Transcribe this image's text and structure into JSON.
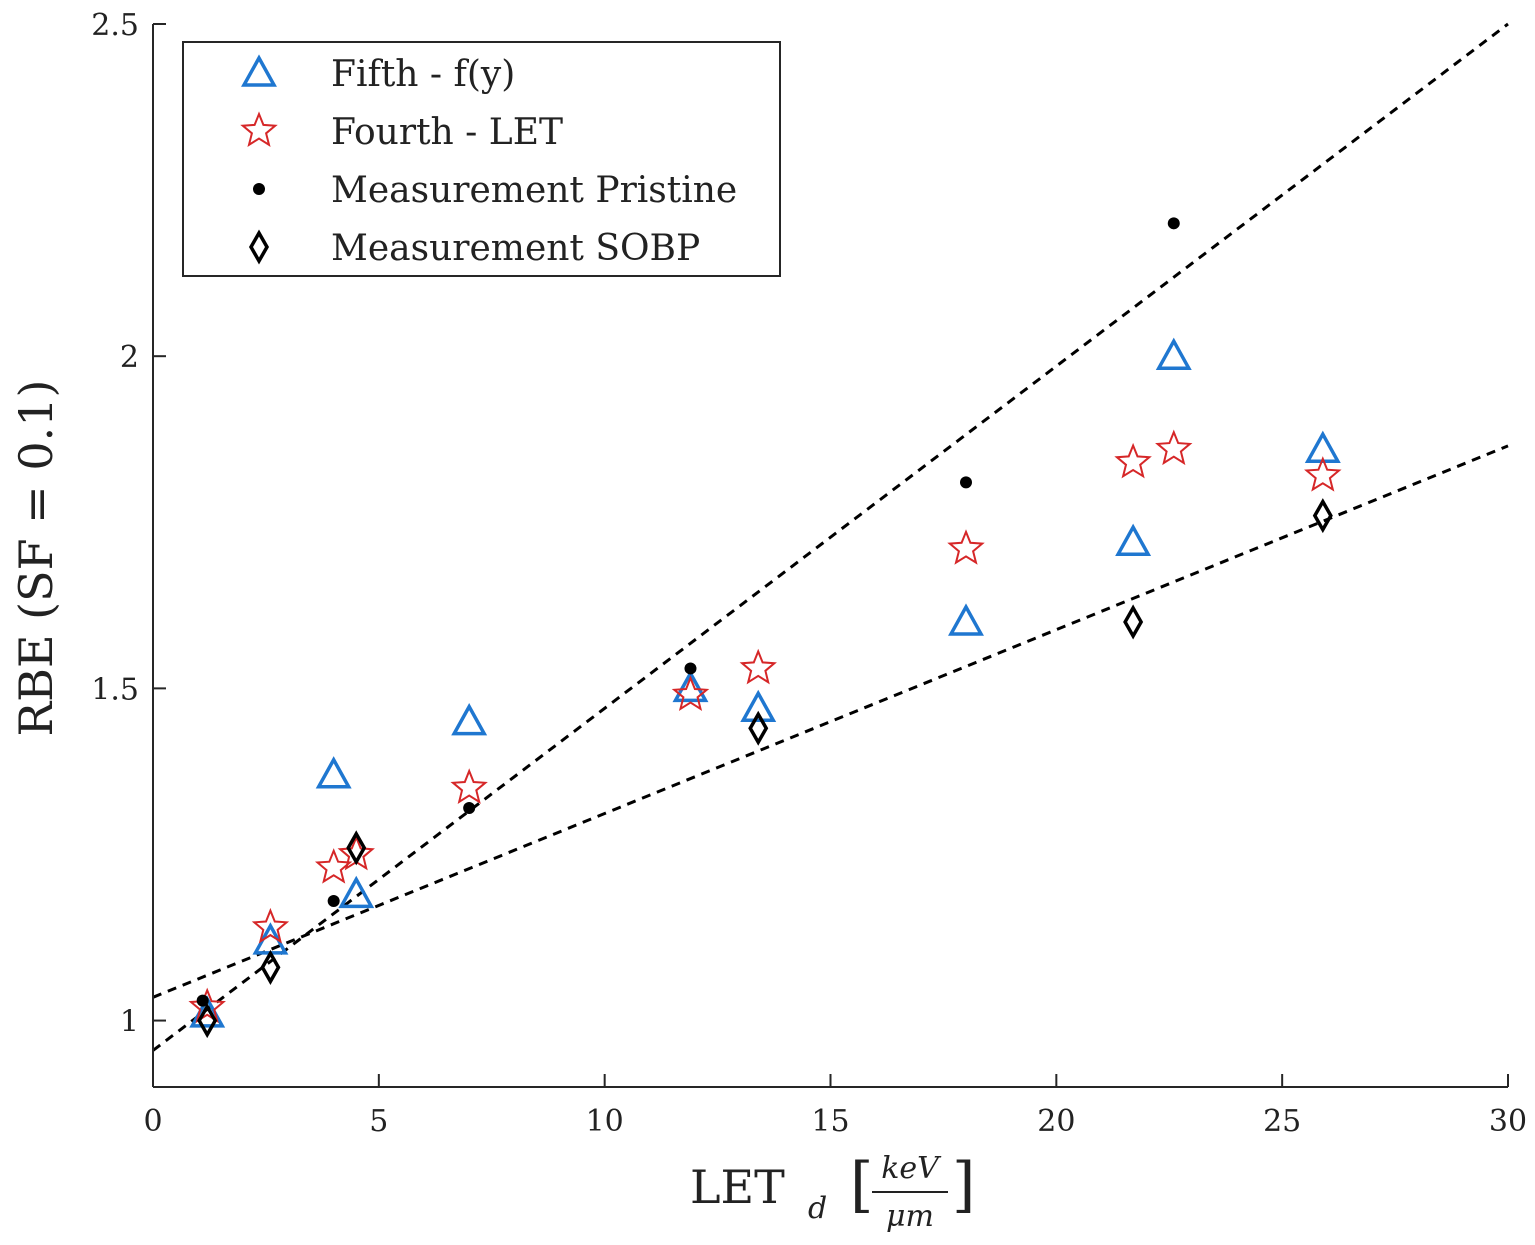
{
  "chart_data": {
    "type": "scatter",
    "xlabel": {
      "main": "LET",
      "sub": "d",
      "unit_numerator": "keV",
      "unit_denominator": "μm"
    },
    "ylabel": "RBE (SF = 0.1)",
    "xlim": [
      0,
      30
    ],
    "ylim": [
      0.9,
      2.5
    ],
    "x_ticks": [
      0,
      5,
      10,
      15,
      20,
      25,
      30
    ],
    "y_ticks": [
      1,
      1.5,
      2,
      2.5
    ],
    "x_tick_labels": [
      "0",
      "5",
      "10",
      "15",
      "20",
      "25",
      "30"
    ],
    "y_tick_labels": [
      "1",
      "1.5",
      "2",
      "2.5"
    ],
    "grid": false,
    "legend_position": "top-left",
    "series": [
      {
        "name": "Fifth - f(y)",
        "marker": "triangle",
        "color": "#1f77d0",
        "points": [
          {
            "x": 1.2,
            "y": 1.01
          },
          {
            "x": 2.6,
            "y": 1.12
          },
          {
            "x": 4.0,
            "y": 1.37
          },
          {
            "x": 4.5,
            "y": 1.19
          },
          {
            "x": 7.0,
            "y": 1.45
          },
          {
            "x": 11.9,
            "y": 1.5
          },
          {
            "x": 13.4,
            "y": 1.47
          },
          {
            "x": 18.0,
            "y": 1.6
          },
          {
            "x": 21.7,
            "y": 1.72
          },
          {
            "x": 22.6,
            "y": 2.0
          },
          {
            "x": 25.9,
            "y": 1.86
          }
        ]
      },
      {
        "name": "Fourth - LET",
        "marker": "star",
        "color": "#d62728",
        "points": [
          {
            "x": 1.2,
            "y": 1.02
          },
          {
            "x": 2.6,
            "y": 1.14
          },
          {
            "x": 4.0,
            "y": 1.23
          },
          {
            "x": 4.5,
            "y": 1.25
          },
          {
            "x": 7.0,
            "y": 1.35
          },
          {
            "x": 11.9,
            "y": 1.49
          },
          {
            "x": 13.4,
            "y": 1.53
          },
          {
            "x": 18.0,
            "y": 1.71
          },
          {
            "x": 21.7,
            "y": 1.84
          },
          {
            "x": 22.6,
            "y": 1.86
          },
          {
            "x": 25.9,
            "y": 1.82
          }
        ]
      },
      {
        "name": "Measurement Pristine",
        "marker": "dot",
        "color": "#000000",
        "points": [
          {
            "x": 1.1,
            "y": 1.03
          },
          {
            "x": 4.0,
            "y": 1.18
          },
          {
            "x": 7.0,
            "y": 1.32
          },
          {
            "x": 11.9,
            "y": 1.53
          },
          {
            "x": 18.0,
            "y": 1.81
          },
          {
            "x": 22.6,
            "y": 2.2
          }
        ]
      },
      {
        "name": "Measurement SOBP",
        "marker": "diamond",
        "color": "#000000",
        "points": [
          {
            "x": 1.2,
            "y": 1.0
          },
          {
            "x": 2.6,
            "y": 1.08
          },
          {
            "x": 4.5,
            "y": 1.26
          },
          {
            "x": 13.4,
            "y": 1.44
          },
          {
            "x": 21.7,
            "y": 1.6
          },
          {
            "x": 25.9,
            "y": 1.76
          }
        ]
      }
    ],
    "fit_lines": [
      {
        "style": "dashed",
        "color": "#000000",
        "x": [
          0,
          30
        ],
        "y": [
          0.955,
          2.5
        ]
      },
      {
        "style": "dashed",
        "color": "#000000",
        "x": [
          0,
          30
        ],
        "y": [
          1.035,
          1.865
        ]
      }
    ]
  }
}
